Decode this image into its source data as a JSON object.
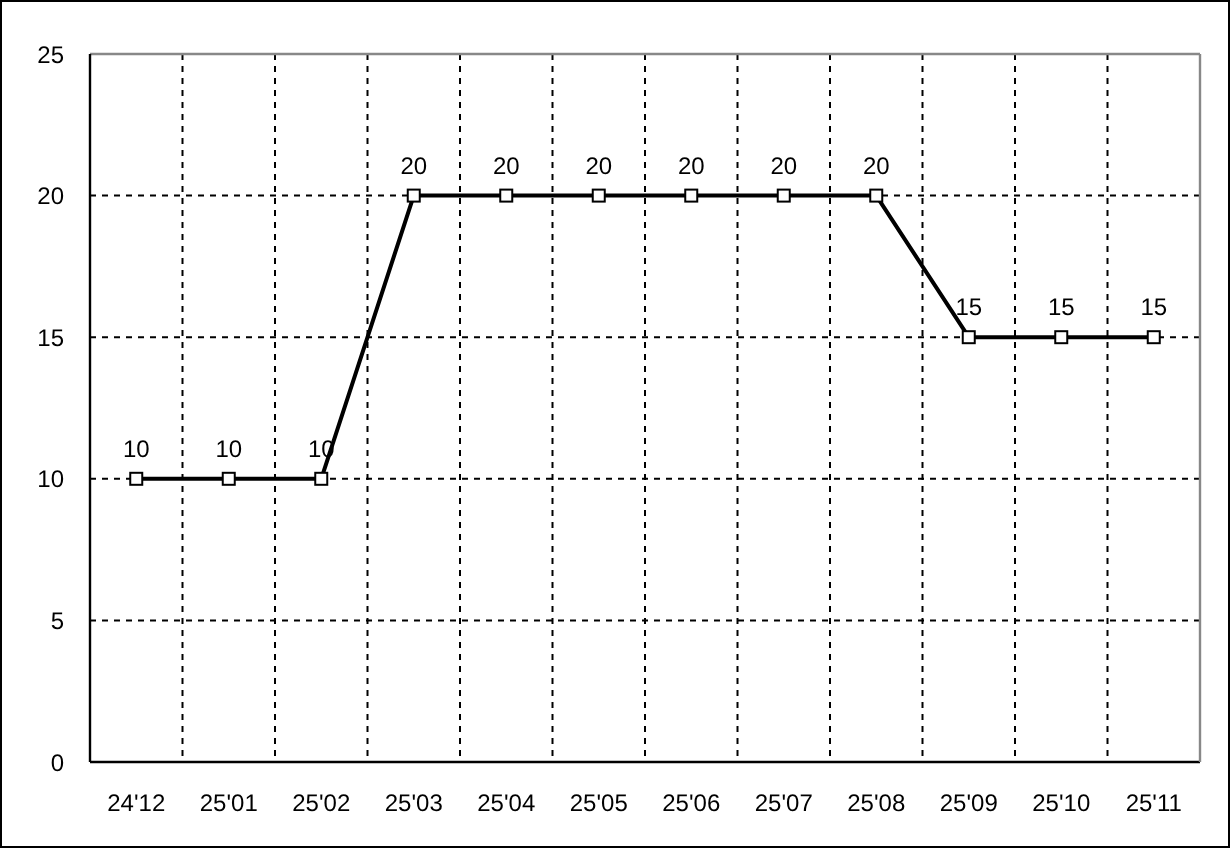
{
  "chart_data": {
    "type": "line",
    "categories": [
      "24'12",
      "25'01",
      "25'02",
      "25'03",
      "25'04",
      "25'05",
      "25'06",
      "25'07",
      "25'08",
      "25'09",
      "25'10",
      "25'11"
    ],
    "series": [
      {
        "color": "#000000",
        "values": [
          10,
          10,
          10,
          20,
          20,
          20,
          20,
          20,
          20,
          15,
          15,
          15
        ]
      }
    ],
    "ylim": [
      0,
      25
    ],
    "yticks": [
      0,
      5,
      10,
      15,
      20,
      25
    ],
    "grid": true,
    "marker": "square",
    "line_style": "solid",
    "data_labels": true
  }
}
